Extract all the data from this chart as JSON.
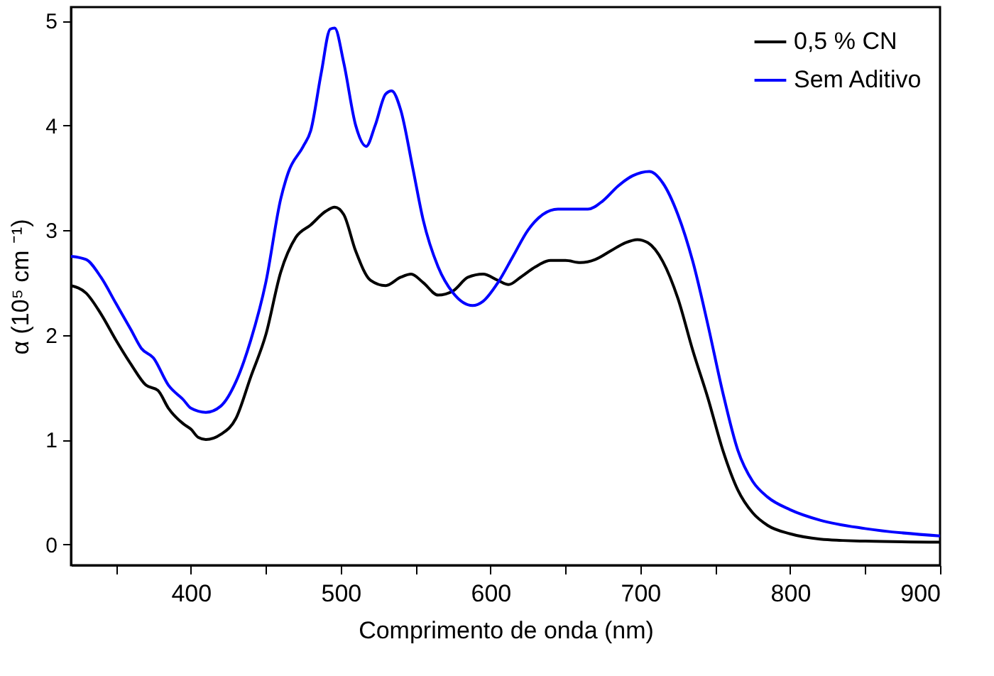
{
  "chart_data": {
    "type": "line",
    "xlabel": "Comprimento de onda (nm)",
    "ylabel": "α (10⁵ cm ⁻¹)",
    "xlim": [
      320,
      900
    ],
    "ylim": [
      -0.2,
      5.13
    ],
    "xticks": [
      {
        "value": 350,
        "label": null
      },
      400,
      {
        "value": 450,
        "label": null
      },
      500,
      {
        "value": 550,
        "label": null
      },
      600,
      {
        "value": 650,
        "label": null
      },
      700,
      {
        "value": 750,
        "label": null
      },
      800,
      {
        "value": 850,
        "label": null
      },
      900
    ],
    "yticks": [
      0,
      1,
      2,
      3,
      4,
      5
    ],
    "grid": false,
    "legend": "top right",
    "line_style": "solid",
    "marker": "none",
    "series": [
      {
        "name": "0,5 % CN",
        "color": "#000000",
        "x": [
          320,
          330,
          340,
          350,
          360,
          370,
          378,
          385,
          395,
          400,
          405,
          410,
          420,
          430,
          440,
          450,
          460,
          470,
          480,
          490,
          496,
          502,
          510,
          520,
          530,
          540,
          547,
          555,
          565,
          575,
          585,
          595,
          605,
          612,
          620,
          630,
          640,
          650,
          660,
          670,
          680,
          690,
          698,
          705,
          715,
          725,
          735,
          745,
          755,
          765,
          775,
          785,
          800,
          820,
          850,
          900
        ],
        "values": [
          2.47,
          2.4,
          2.2,
          1.95,
          1.72,
          1.52,
          1.47,
          1.3,
          1.15,
          1.1,
          1.02,
          1.0,
          1.05,
          1.2,
          1.6,
          2.0,
          2.6,
          2.93,
          3.05,
          3.18,
          3.22,
          3.15,
          2.8,
          2.52,
          2.47,
          2.55,
          2.58,
          2.5,
          2.38,
          2.42,
          2.55,
          2.58,
          2.52,
          2.48,
          2.55,
          2.65,
          2.71,
          2.71,
          2.69,
          2.72,
          2.8,
          2.88,
          2.91,
          2.88,
          2.7,
          2.35,
          1.85,
          1.4,
          0.9,
          0.52,
          0.3,
          0.18,
          0.1,
          0.05,
          0.03,
          0.02
        ]
      },
      {
        "name": "Sem Aditivo",
        "color": "#0000ff",
        "x": [
          320,
          330,
          340,
          350,
          360,
          367,
          375,
          385,
          395,
          400,
          410,
          420,
          430,
          440,
          450,
          460,
          465,
          475,
          480,
          487,
          493,
          496,
          502,
          510,
          517,
          523,
          530,
          534,
          540,
          548,
          555,
          565,
          575,
          588,
          595,
          605,
          615,
          625,
          635,
          645,
          655,
          665,
          675,
          685,
          695,
          706,
          715,
          725,
          735,
          745,
          755,
          765,
          775,
          785,
          800,
          820,
          850,
          900
        ],
        "values": [
          2.75,
          2.72,
          2.55,
          2.3,
          2.05,
          1.87,
          1.78,
          1.52,
          1.38,
          1.3,
          1.26,
          1.32,
          1.55,
          1.95,
          2.5,
          3.3,
          3.55,
          3.8,
          3.95,
          4.5,
          4.92,
          4.93,
          4.6,
          4.0,
          3.8,
          4.0,
          4.3,
          4.33,
          4.15,
          3.6,
          3.1,
          2.65,
          2.4,
          2.28,
          2.32,
          2.5,
          2.75,
          3.0,
          3.15,
          3.2,
          3.2,
          3.2,
          3.28,
          3.42,
          3.52,
          3.56,
          3.45,
          3.15,
          2.7,
          2.1,
          1.45,
          0.9,
          0.6,
          0.45,
          0.33,
          0.23,
          0.15,
          0.08
        ]
      }
    ]
  }
}
